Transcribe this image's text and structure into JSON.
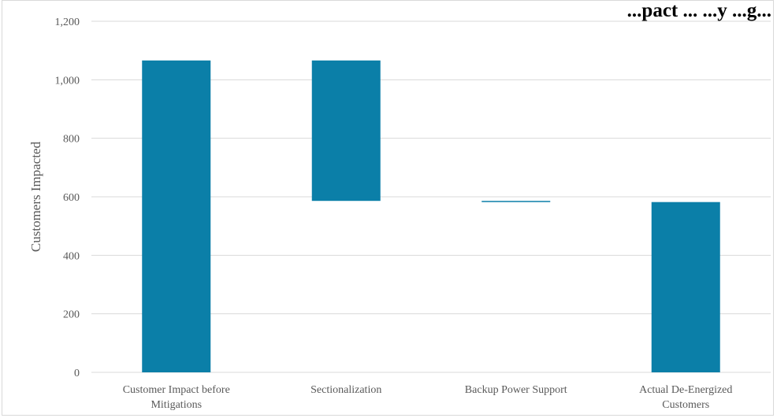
{
  "chart_data": {
    "type": "bar",
    "subtype": "waterfall",
    "title": "...pact ... ...y ...g...",
    "ylabel": "Customers Impacted",
    "xlabel": "",
    "ylim": [
      0,
      1200
    ],
    "yticks": [
      0,
      200,
      400,
      600,
      800,
      1000,
      1200
    ],
    "ytick_labels": [
      "0",
      "200",
      "400",
      "600",
      "800",
      "1,000",
      "1,200"
    ],
    "categories": [
      "Customer Impact before Mitigations",
      "Sectionalization",
      "Backup Power Support",
      "Actual De-Energized Customers"
    ],
    "category_label_lines": [
      [
        "Customer Impact before",
        "Mitigations"
      ],
      [
        "Sectionalization"
      ],
      [
        "Backup Power Support"
      ],
      [
        "Actual De-Energized",
        "Customers"
      ]
    ],
    "bars": [
      {
        "category": "Customer Impact before Mitigations",
        "start": 0,
        "end": 1066
      },
      {
        "category": "Sectionalization",
        "start": 1066,
        "end": 586
      },
      {
        "category": "Backup Power Support",
        "start": 586,
        "end": 582
      },
      {
        "category": "Actual De-Energized Customers",
        "start": 0,
        "end": 582
      }
    ],
    "bar_color": "#0b7fa8",
    "grid": true,
    "legend": "none"
  }
}
